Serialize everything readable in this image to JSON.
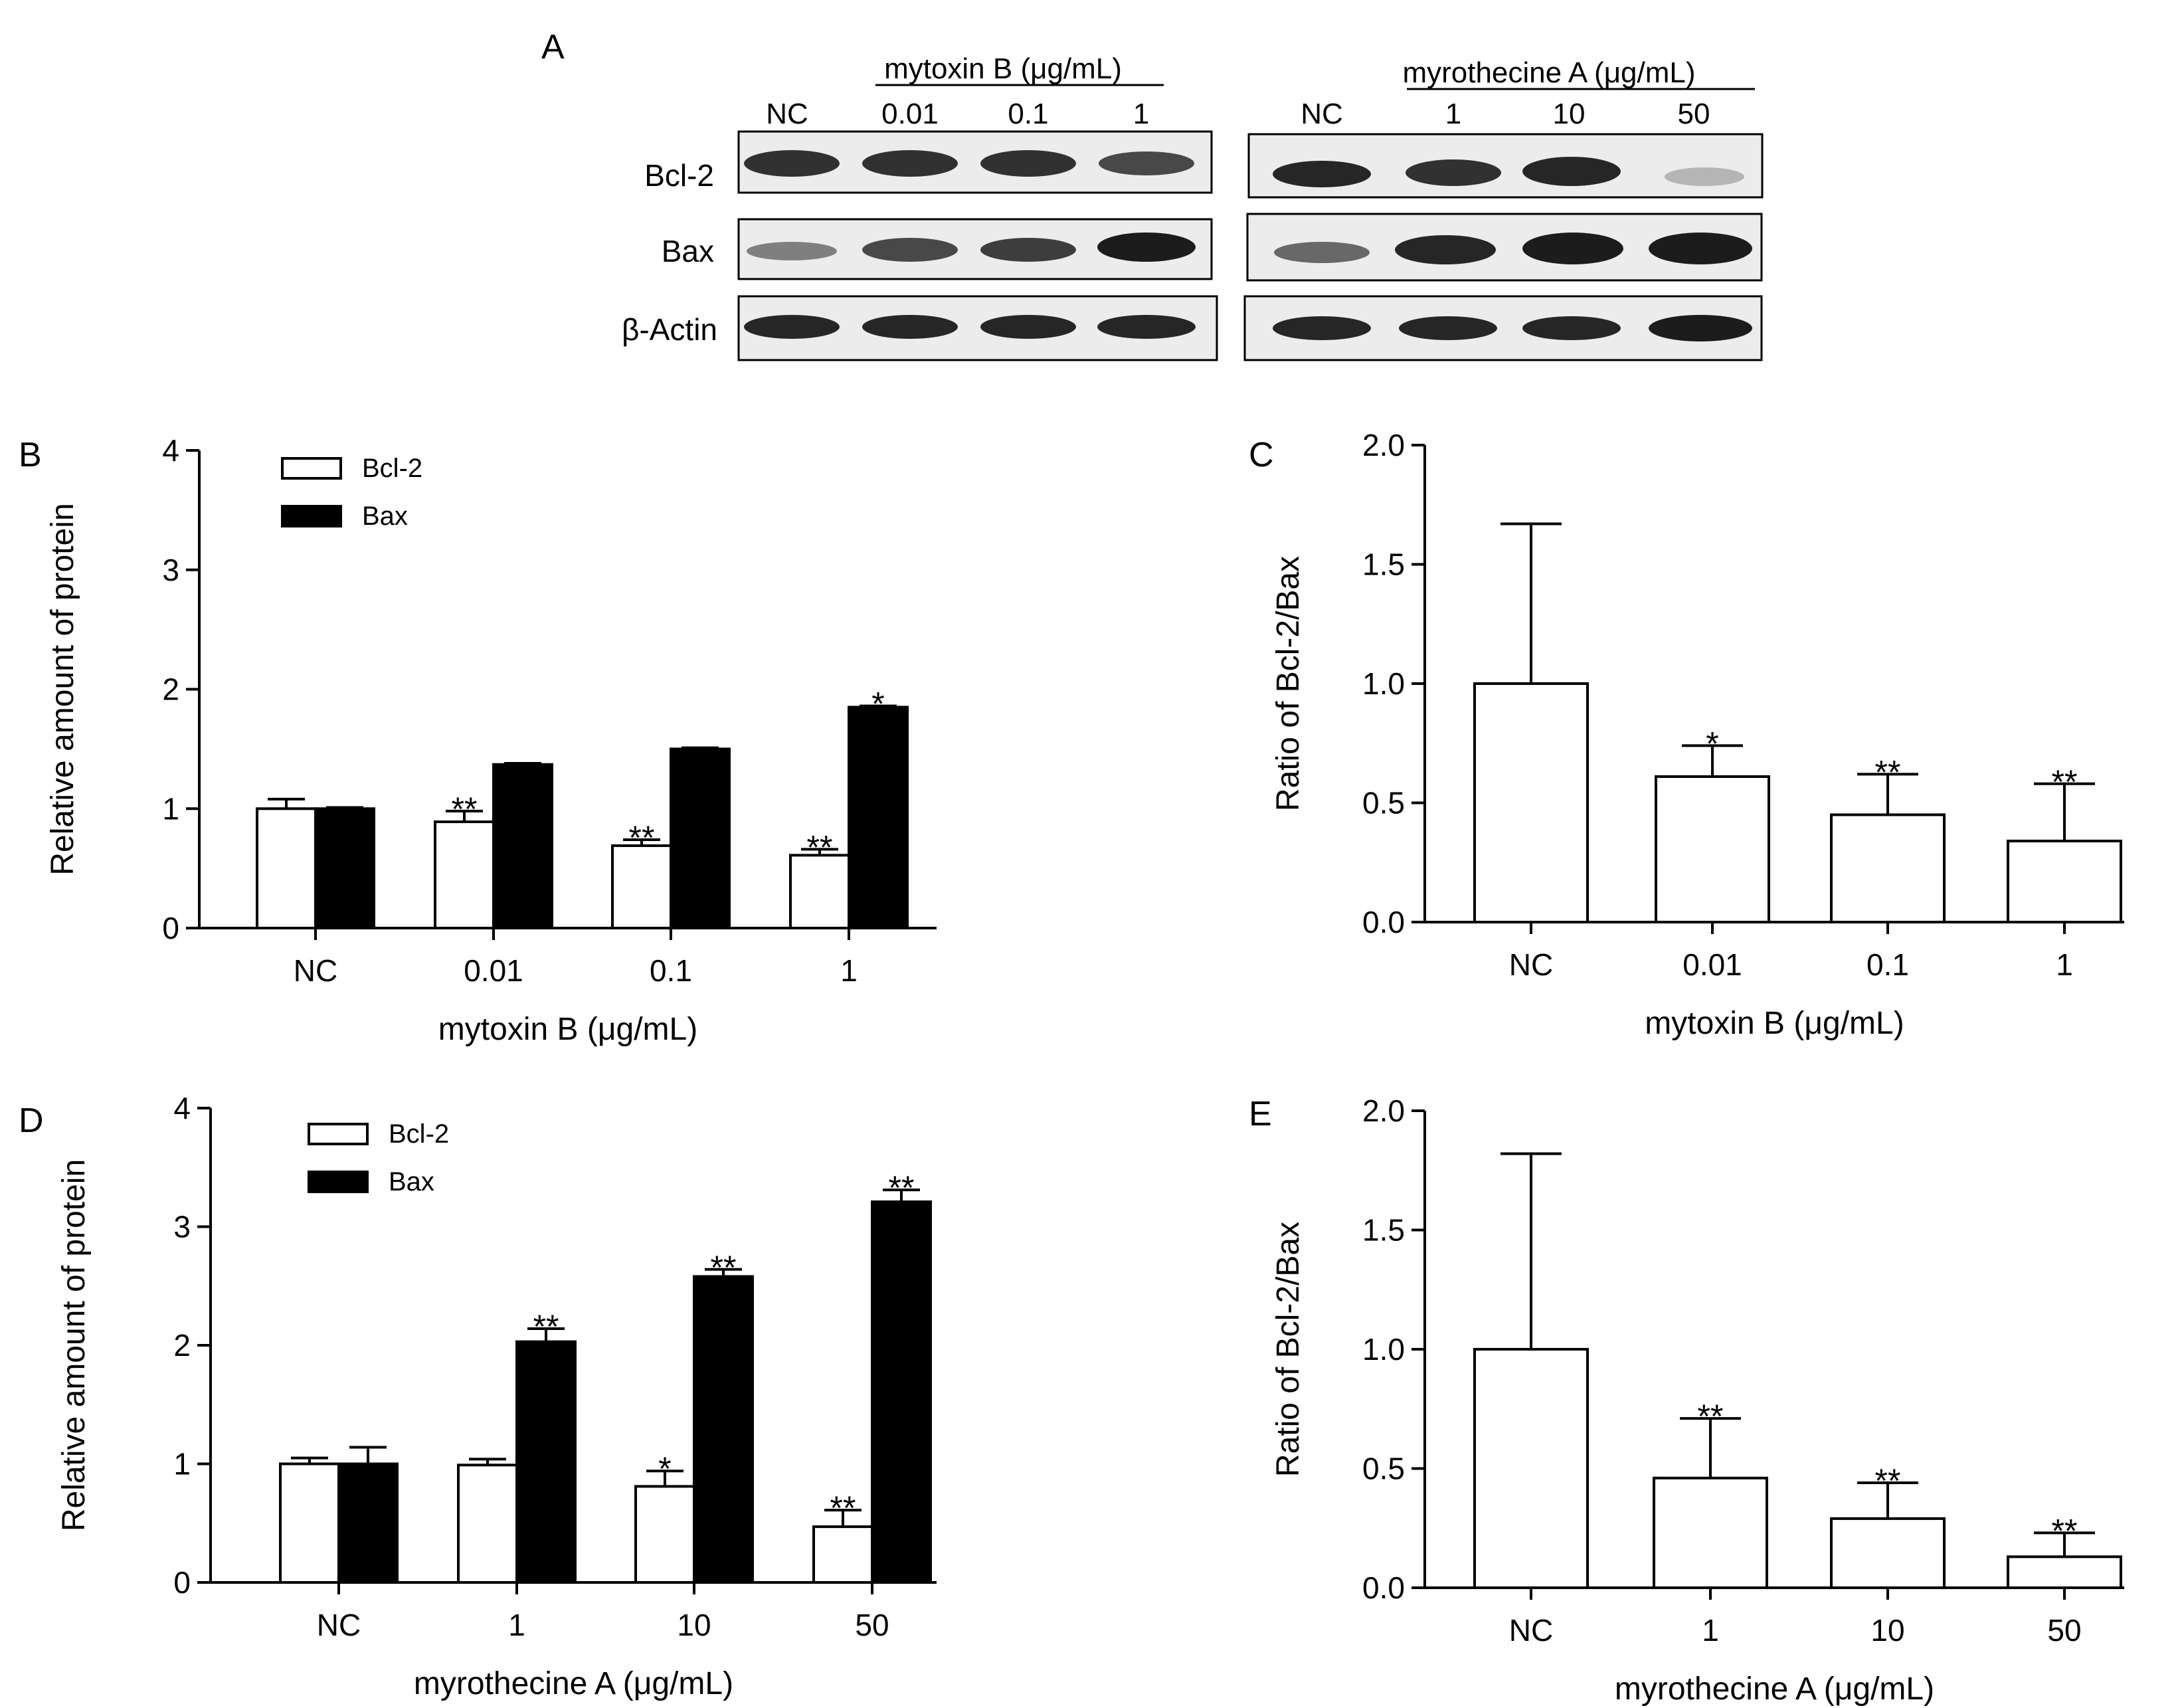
{
  "panel_letters": {
    "A": "A",
    "B": "B",
    "C": "C",
    "D": "D",
    "E": "E"
  },
  "western_blot": {
    "groups": [
      {
        "title": "mytoxin B (μg/mL)",
        "lanes": [
          "NC",
          "0.01",
          "0.1",
          "1"
        ]
      },
      {
        "title": "myrothecine A (μg/mL)",
        "lanes": [
          "NC",
          "1",
          "10",
          "50"
        ]
      }
    ],
    "rows": [
      "Bcl-2",
      "Bax",
      "β-Actin"
    ],
    "band_intensity": [
      [
        [
          0.85,
          0.85,
          0.85,
          0.75
        ],
        [
          0.9,
          0.85,
          0.9,
          0.25
        ]
      ],
      [
        [
          0.5,
          0.75,
          0.8,
          0.95
        ],
        [
          0.6,
          0.9,
          0.95,
          0.95
        ]
      ],
      [
        [
          0.9,
          0.9,
          0.9,
          0.9
        ],
        [
          0.9,
          0.9,
          0.9,
          0.95
        ]
      ]
    ]
  },
  "chart_data": [
    {
      "id": "B",
      "type": "bar",
      "categories": [
        "NC",
        "0.01",
        "0.1",
        "1"
      ],
      "series": [
        {
          "name": "Bcl-2",
          "color": "#ffffff",
          "values": [
            1.0,
            0.89,
            0.69,
            0.61
          ],
          "errors": [
            0.08,
            0.09,
            0.05,
            0.05
          ],
          "sig": [
            "",
            "**",
            "**",
            "**"
          ]
        },
        {
          "name": "Bax",
          "color": "#000000",
          "values": [
            1.0,
            1.37,
            1.5,
            1.85
          ],
          "errors": [
            0.01,
            0.01,
            0.01,
            0.01
          ],
          "sig": [
            "",
            "",
            "",
            "*"
          ]
        }
      ],
      "xlabel": "mytoxin B (μg/mL)",
      "ylabel": "Relative amount of protein",
      "ylim": [
        0,
        4
      ],
      "yticks": [
        "0",
        "1",
        "2",
        "3",
        "4"
      ],
      "legend": [
        "Bcl-2",
        "Bax"
      ]
    },
    {
      "id": "C",
      "type": "bar",
      "categories": [
        "NC",
        "0.01",
        "0.1",
        "1"
      ],
      "series": [
        {
          "name": "Ratio",
          "color": "#ffffff",
          "values": [
            1.0,
            0.61,
            0.45,
            0.34
          ],
          "errors": [
            0.67,
            0.13,
            0.17,
            0.24
          ],
          "sig": [
            "",
            "*",
            "**",
            "**"
          ]
        }
      ],
      "xlabel": "mytoxin B (μg/mL)",
      "ylabel": "Ratio of Bcl-2/Bax",
      "ylim": [
        0,
        2
      ],
      "yticks": [
        "0.0",
        "0.5",
        "1.0",
        "1.5",
        "2.0"
      ]
    },
    {
      "id": "D",
      "type": "bar",
      "categories": [
        "NC",
        "1",
        "10",
        "50"
      ],
      "series": [
        {
          "name": "Bcl-2",
          "color": "#ffffff",
          "values": [
            1.0,
            0.99,
            0.81,
            0.47
          ],
          "errors": [
            0.05,
            0.05,
            0.13,
            0.14
          ],
          "sig": [
            "",
            "",
            "*",
            "**"
          ]
        },
        {
          "name": "Bax",
          "color": "#000000",
          "values": [
            1.0,
            2.03,
            2.58,
            3.21
          ],
          "errors": [
            0.14,
            0.11,
            0.06,
            0.1
          ],
          "sig": [
            "",
            "**",
            "**",
            "**"
          ]
        }
      ],
      "xlabel": "myrothecine A (μg/mL)",
      "ylabel": "Relative amount of protein",
      "ylim": [
        0,
        4
      ],
      "yticks": [
        "0",
        "1",
        "2",
        "3",
        "4"
      ],
      "legend": [
        "Bcl-2",
        "Bax"
      ]
    },
    {
      "id": "E",
      "type": "bar",
      "categories": [
        "NC",
        "1",
        "10",
        "50"
      ],
      "series": [
        {
          "name": "Ratio",
          "color": "#ffffff",
          "values": [
            1.0,
            0.46,
            0.29,
            0.13
          ],
          "errors": [
            0.82,
            0.25,
            0.15,
            0.1
          ],
          "sig": [
            "",
            "**",
            "**",
            "**"
          ]
        }
      ],
      "xlabel": "myrothecine A (μg/mL)",
      "ylabel": "Ratio of Bcl-2/Bax",
      "ylim": [
        0,
        2
      ],
      "yticks": [
        "0.0",
        "0.5",
        "1.0",
        "1.5",
        "2.0"
      ]
    }
  ]
}
